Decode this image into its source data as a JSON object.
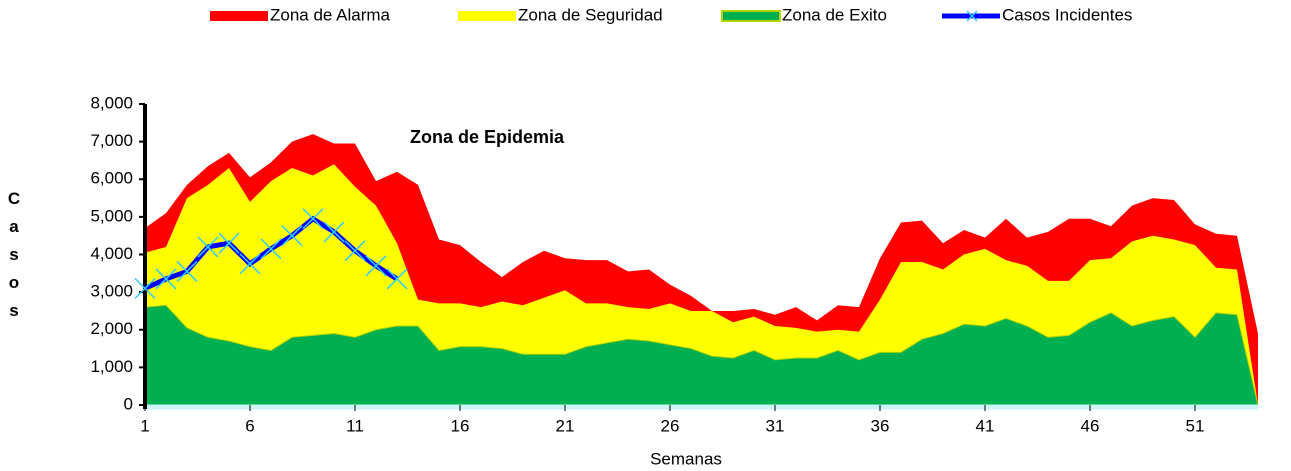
{
  "chart_data": {
    "type": "area",
    "xlabel": "Semanas",
    "ylabel": "Casos",
    "annotation": "Zona de Epidemia",
    "x": [
      1,
      2,
      3,
      4,
      5,
      6,
      7,
      8,
      9,
      10,
      11,
      12,
      13,
      14,
      15,
      16,
      17,
      18,
      19,
      20,
      21,
      22,
      23,
      24,
      25,
      26,
      27,
      28,
      29,
      30,
      31,
      32,
      33,
      34,
      35,
      36,
      37,
      38,
      39,
      40,
      41,
      42,
      43,
      44,
      45,
      46,
      47,
      48,
      49,
      50,
      51,
      52,
      53,
      54
    ],
    "xlim": [
      1,
      55.2
    ],
    "xticks": [
      1,
      6,
      11,
      16,
      21,
      26,
      31,
      36,
      41,
      46,
      51
    ],
    "ylim": [
      0,
      8000
    ],
    "yticks": [
      0,
      {
        "value": 1000,
        "label": "1,000"
      },
      {
        "value": 2000,
        "label": "2,000"
      },
      {
        "value": 3000,
        "label": "3,000"
      },
      {
        "value": 4000,
        "label": "4,000"
      },
      {
        "value": 5000,
        "label": "5,000"
      },
      {
        "value": 6000,
        "label": "6,000"
      },
      {
        "value": 7000,
        "label": "7,000"
      },
      {
        "value": 8000,
        "label": "8,000"
      }
    ],
    "series": [
      {
        "name": "Zona de Alarma",
        "color": "#ff0000",
        "kind": "area",
        "values": [
          4700,
          5100,
          5850,
          6350,
          6700,
          6050,
          6450,
          7000,
          7200,
          6950,
          6950,
          5950,
          6200,
          5850,
          4400,
          4250,
          3800,
          3400,
          3800,
          4100,
          3900,
          3850,
          3850,
          3550,
          3600,
          3200,
          2900,
          2500,
          2500,
          2550,
          2400,
          2600,
          2250,
          2650,
          2600,
          3900,
          4850,
          4900,
          4300,
          4650,
          4450,
          4950,
          4450,
          4600,
          4950,
          4950,
          4750,
          5300,
          5500,
          5450,
          4800,
          4550,
          4500,
          1900
        ]
      },
      {
        "name": "Zona de Seguridad",
        "color": "#ffff00",
        "kind": "area",
        "values": [
          4050,
          4200,
          5500,
          5850,
          6300,
          5400,
          5950,
          6300,
          6100,
          6400,
          5800,
          5300,
          4300,
          2800,
          2700,
          2700,
          2600,
          2750,
          2650,
          2850,
          3050,
          2700,
          2700,
          2600,
          2550,
          2700,
          2500,
          2500,
          2200,
          2350,
          2100,
          2050,
          1950,
          2000,
          1950,
          2800,
          3800,
          3800,
          3600,
          4000,
          4150,
          3850,
          3700,
          3300,
          3300,
          3850,
          3900,
          4350,
          4500,
          4400,
          4250,
          3650,
          3600,
          0
        ]
      },
      {
        "name": "Zona de Exito",
        "color": "#00b050",
        "kind": "area",
        "values": [
          2600,
          2650,
          2050,
          1800,
          1700,
          1550,
          1450,
          1800,
          1850,
          1900,
          1800,
          2000,
          2100,
          2100,
          1450,
          1550,
          1550,
          1500,
          1350,
          1350,
          1350,
          1550,
          1650,
          1750,
          1700,
          1600,
          1500,
          1300,
          1250,
          1450,
          1200,
          1250,
          1250,
          1450,
          1200,
          1400,
          1400,
          1750,
          1900,
          2150,
          2100,
          2300,
          2100,
          1800,
          1850,
          2200,
          2450,
          2100,
          2250,
          2350,
          1800,
          2450,
          2400,
          0
        ]
      },
      {
        "name": "Casos Incidentes",
        "color": "#0000ff",
        "kind": "line",
        "values": [
          3100,
          3350,
          3550,
          4200,
          4300,
          3750,
          4150,
          4500,
          4950,
          4600,
          4100,
          3700,
          3350,
          null,
          null,
          null,
          null,
          null,
          null,
          null,
          null,
          null,
          null,
          null,
          null,
          null,
          null,
          null,
          null,
          null,
          null,
          null,
          null,
          null,
          null,
          null,
          null,
          null,
          null,
          null,
          null,
          null,
          null,
          null,
          null,
          null,
          null,
          null,
          null,
          null,
          null,
          null,
          null,
          null
        ]
      }
    ]
  }
}
